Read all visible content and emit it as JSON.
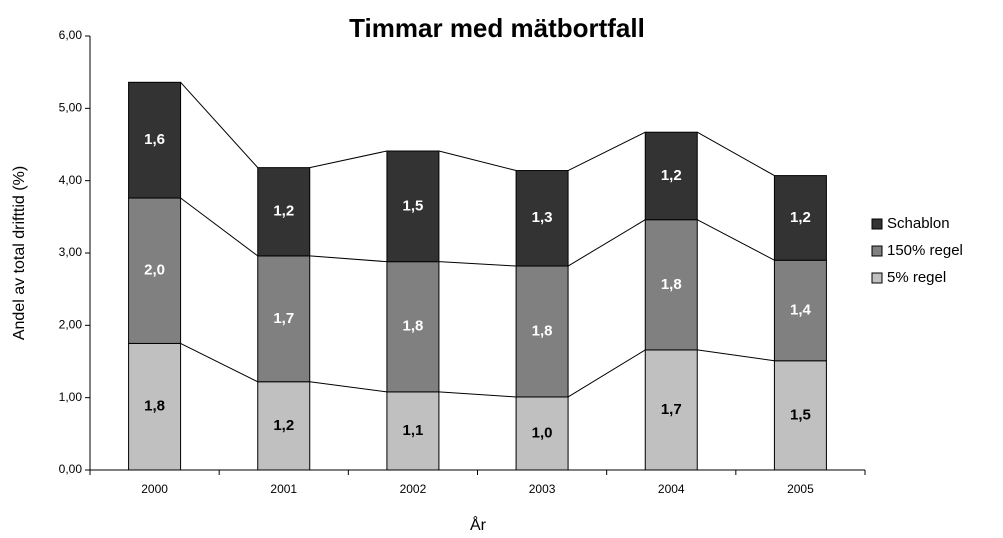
{
  "chart_data": {
    "type": "stacked-bar",
    "title": "Timmar med mätbortfall",
    "x_label": "År",
    "y_label": "Andel av total drifttid (%)",
    "categories": [
      "2000",
      "2001",
      "2002",
      "2003",
      "2004",
      "2005"
    ],
    "series": [
      {
        "name": "5% regel",
        "color": "#c0c0c0",
        "values": [
          1.75,
          1.22,
          1.08,
          1.01,
          1.66,
          1.51
        ],
        "value_labels": [
          "1,8",
          "1,2",
          "1,1",
          "1,0",
          "1,7",
          "1,5"
        ]
      },
      {
        "name": "150% regel",
        "color": "#808080",
        "values": [
          2.01,
          1.74,
          1.8,
          1.81,
          1.8,
          1.39
        ],
        "value_labels": [
          "2,0",
          "1,7",
          "1,8",
          "1,8",
          "1,8",
          "1,4"
        ]
      },
      {
        "name": "Schablon",
        "color": "#333333",
        "values": [
          1.6,
          1.22,
          1.53,
          1.32,
          1.21,
          1.17
        ],
        "value_labels": [
          "1,6",
          "1,2",
          "1,5",
          "1,3",
          "1,2",
          "1,2"
        ]
      }
    ],
    "ylim": [
      0,
      6
    ],
    "yticks": [
      {
        "value": 0,
        "label": "0,00"
      },
      {
        "value": 1,
        "label": "1,00"
      },
      {
        "value": 2,
        "label": "2,00"
      },
      {
        "value": 3,
        "label": "3,00"
      },
      {
        "value": 4,
        "label": "4,00"
      },
      {
        "value": 5,
        "label": "5,00"
      },
      {
        "value": 6,
        "label": "6,00"
      }
    ],
    "legend": "right"
  }
}
